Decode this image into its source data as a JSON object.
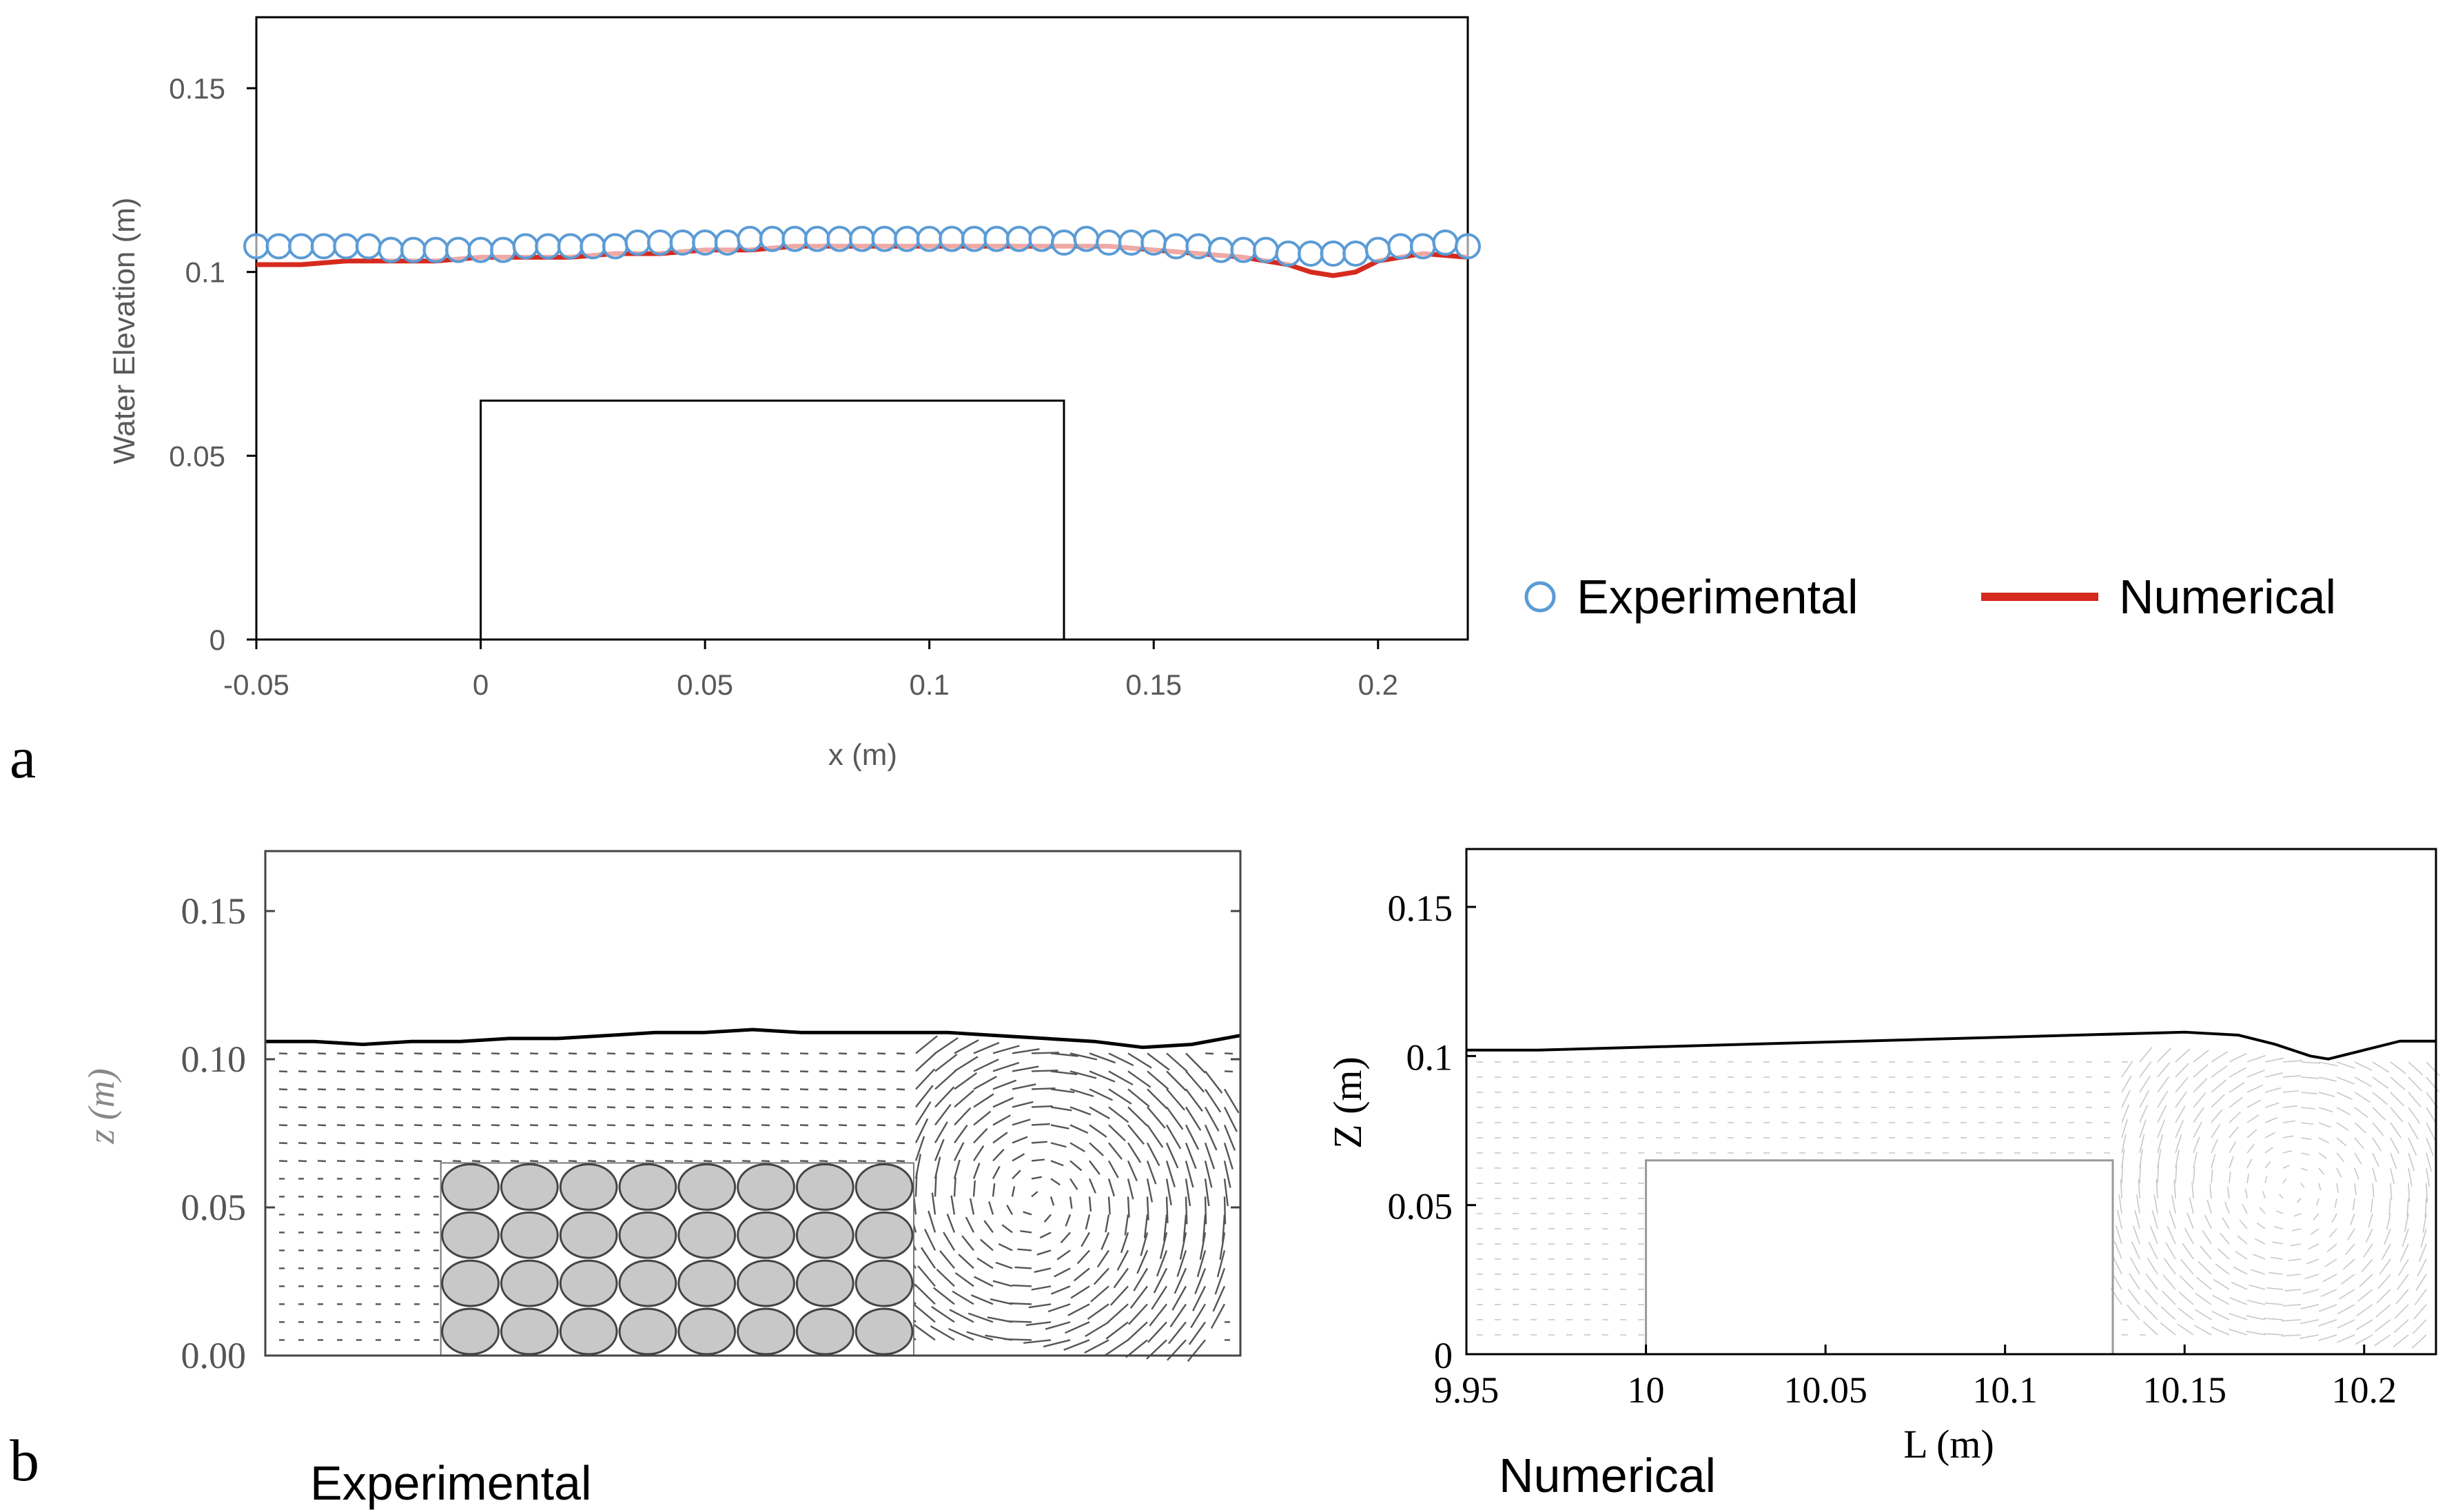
{
  "panel_labels": {
    "a": "a",
    "b": "b"
  },
  "captions": {
    "experimental": "Experimental",
    "numerical": "Numerical"
  },
  "legend": {
    "experimental": "Experimental",
    "numerical": "Numerical"
  },
  "colors": {
    "experimental": "#5b9bd5",
    "numerical": "#d62a1e",
    "axis": "#000000",
    "tick_text": "#595959",
    "vector": "#555555",
    "circle_fill": "#c8c8c8"
  },
  "chart_data": [
    {
      "type": "scatter",
      "panel": "a",
      "xlabel": "x (m)",
      "ylabel": "Water Elevation (m)",
      "xlim": [
        -0.05,
        0.22
      ],
      "ylim": [
        0,
        0.15
      ],
      "x_ticks": [
        "-0.05",
        "0",
        "0.05",
        "0.1",
        "0.15",
        "0.2"
      ],
      "y_ticks": [
        "0",
        "0.05",
        "0.1",
        "0.15"
      ],
      "obstacle": {
        "x0": 0,
        "x1": 0.13,
        "height": 0.065
      },
      "series": [
        {
          "name": "Experimental",
          "style": "open-circles",
          "x": [
            -0.05,
            -0.045,
            -0.04,
            -0.035,
            -0.03,
            -0.025,
            -0.02,
            -0.015,
            -0.01,
            -0.005,
            0,
            0.005,
            0.01,
            0.015,
            0.02,
            0.025,
            0.03,
            0.035,
            0.04,
            0.045,
            0.05,
            0.055,
            0.06,
            0.065,
            0.07,
            0.075,
            0.08,
            0.085,
            0.09,
            0.095,
            0.1,
            0.105,
            0.11,
            0.115,
            0.12,
            0.125,
            0.13,
            0.135,
            0.14,
            0.145,
            0.15,
            0.155,
            0.16,
            0.165,
            0.17,
            0.175,
            0.18,
            0.185,
            0.19,
            0.195,
            0.2,
            0.205,
            0.21,
            0.215,
            0.22
          ],
          "y": [
            0.107,
            0.107,
            0.107,
            0.107,
            0.107,
            0.107,
            0.106,
            0.106,
            0.106,
            0.106,
            0.106,
            0.106,
            0.107,
            0.107,
            0.107,
            0.107,
            0.107,
            0.108,
            0.108,
            0.108,
            0.108,
            0.108,
            0.109,
            0.109,
            0.109,
            0.109,
            0.109,
            0.109,
            0.109,
            0.109,
            0.109,
            0.109,
            0.109,
            0.109,
            0.109,
            0.109,
            0.108,
            0.109,
            0.108,
            0.108,
            0.108,
            0.107,
            0.107,
            0.106,
            0.106,
            0.106,
            0.105,
            0.105,
            0.105,
            0.105,
            0.106,
            0.107,
            0.107,
            0.108,
            0.107
          ]
        },
        {
          "name": "Numerical",
          "style": "line",
          "x": [
            -0.05,
            -0.04,
            -0.03,
            -0.02,
            -0.01,
            0,
            0.01,
            0.02,
            0.03,
            0.04,
            0.05,
            0.06,
            0.07,
            0.08,
            0.09,
            0.1,
            0.11,
            0.12,
            0.13,
            0.14,
            0.15,
            0.16,
            0.17,
            0.175,
            0.18,
            0.185,
            0.19,
            0.195,
            0.2,
            0.21,
            0.22
          ],
          "y": [
            0.102,
            0.102,
            0.103,
            0.103,
            0.103,
            0.104,
            0.104,
            0.104,
            0.105,
            0.105,
            0.106,
            0.106,
            0.107,
            0.107,
            0.107,
            0.107,
            0.107,
            0.107,
            0.107,
            0.107,
            0.106,
            0.105,
            0.104,
            0.103,
            0.102,
            0.1,
            0.099,
            0.1,
            0.103,
            0.105,
            0.104
          ]
        }
      ]
    },
    {
      "type": "vector-field",
      "panel": "b-experimental",
      "xlabel": "",
      "ylabel": "z (m)",
      "ylim": [
        0,
        0.17
      ],
      "y_ticks": [
        "0.00",
        "0.05",
        "0.10",
        "0.15"
      ],
      "free_surface": {
        "x_frac": [
          0,
          0.05,
          0.1,
          0.15,
          0.2,
          0.25,
          0.3,
          0.35,
          0.4,
          0.45,
          0.5,
          0.55,
          0.6,
          0.65,
          0.7,
          0.75,
          0.8,
          0.85,
          0.9,
          0.95,
          1.0
        ],
        "z": [
          0.106,
          0.106,
          0.105,
          0.106,
          0.106,
          0.107,
          0.107,
          0.108,
          0.109,
          0.109,
          0.11,
          0.109,
          0.109,
          0.109,
          0.109,
          0.108,
          0.107,
          0.106,
          0.104,
          0.105,
          0.108
        ]
      },
      "porous_block": {
        "x0_frac": 0.18,
        "x1_frac": 0.665,
        "height": 0.065,
        "columns": 8,
        "rows": 4
      }
    },
    {
      "type": "vector-field",
      "panel": "b-numerical",
      "xlabel": "L (m)",
      "ylabel": "Z (m)",
      "xlim": [
        9.95,
        10.22
      ],
      "ylim": [
        0,
        0.17
      ],
      "x_ticks": [
        "9.95",
        "10",
        "10.05",
        "10.1",
        "10.15",
        "10.2"
      ],
      "y_ticks": [
        "0",
        "0.05",
        "0.1",
        "0.15"
      ],
      "obstacle": {
        "x0": 10.0,
        "x1": 10.13,
        "height": 0.065
      },
      "free_surface": {
        "x": [
          9.95,
          9.97,
          10.0,
          10.03,
          10.06,
          10.09,
          10.12,
          10.15,
          10.165,
          10.175,
          10.185,
          10.19,
          10.2,
          10.21,
          10.22
        ],
        "z": [
          0.102,
          0.102,
          0.103,
          0.104,
          0.105,
          0.106,
          0.107,
          0.108,
          0.107,
          0.104,
          0.1,
          0.099,
          0.102,
          0.105,
          0.105
        ]
      }
    }
  ]
}
